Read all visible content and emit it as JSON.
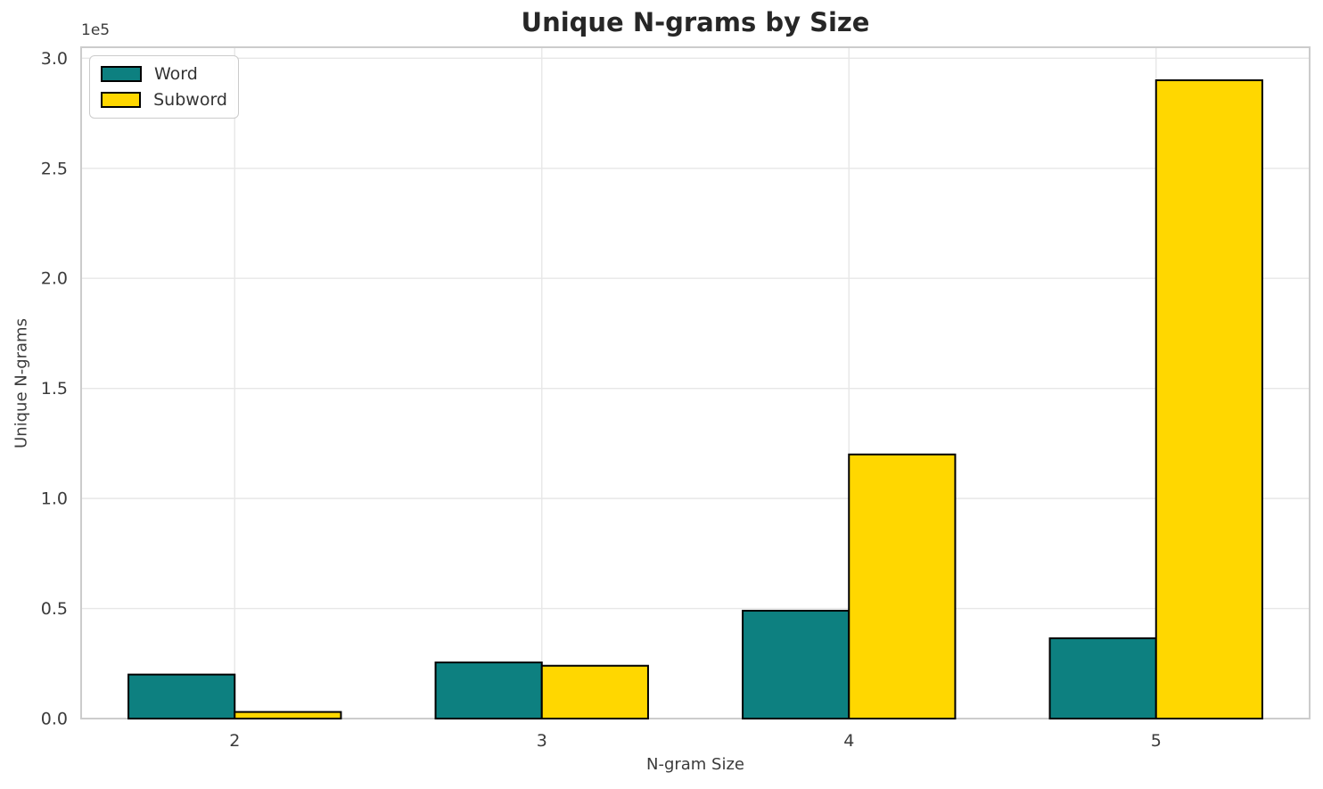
{
  "chart_data": {
    "type": "bar",
    "title": "Unique N-grams by Size",
    "xlabel": "N-gram Size",
    "ylabel": "Unique N-grams",
    "scale_note": "1e5",
    "categories": [
      "2",
      "3",
      "4",
      "5"
    ],
    "series": [
      {
        "name": "Word",
        "color": "#0d8080",
        "values": [
          20000,
          25500,
          49000,
          36500
        ]
      },
      {
        "name": "Subword",
        "color": "#ffd700",
        "values": [
          3000,
          24000,
          120000,
          290000
        ]
      }
    ],
    "ylim": [
      0,
      305000
    ],
    "yticks": {
      "values": [
        0,
        50000,
        100000,
        150000,
        200000,
        250000,
        300000
      ],
      "labels": [
        "0.0",
        "0.5",
        "1.0",
        "1.5",
        "2.0",
        "2.5",
        "3.0"
      ]
    },
    "grid": true,
    "legend_position": "upper left",
    "bar_edge_color": "#000000",
    "colors": {
      "grid": "#e7e7e7",
      "spine": "#cccccc",
      "tick_text": "#3b3b3b",
      "title_text": "#262626",
      "background": "#ffffff"
    }
  },
  "legend": {
    "items": [
      {
        "label": "Word",
        "color": "#0d8080"
      },
      {
        "label": "Subword",
        "color": "#ffd700"
      }
    ]
  }
}
